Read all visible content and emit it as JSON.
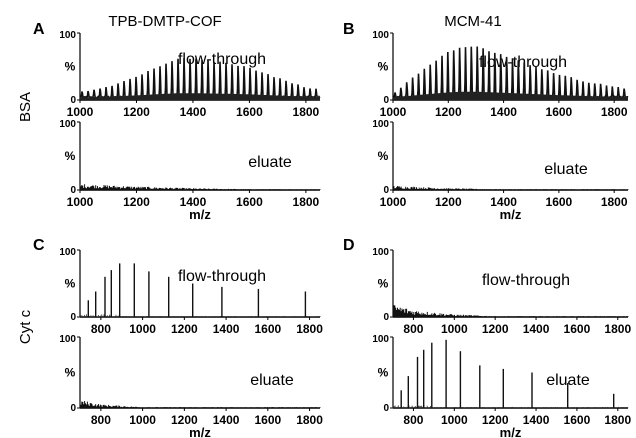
{
  "column_titles": [
    "TPB-DMTP-COF",
    "MCM-41"
  ],
  "row_labels": [
    "BSA",
    "Cyt c"
  ],
  "chart_data": [
    {
      "type": "line",
      "panel": "A",
      "protein": "BSA",
      "material": "TPB-DMTP-COF",
      "ylabel": "%",
      "yticks": [
        "0",
        "100"
      ],
      "subplots": [
        {
          "annotation": "flow-through",
          "xlim": [
            1000,
            1850
          ],
          "ylim": [
            0,
            100
          ],
          "pattern": "envelope",
          "x": [
            1000,
            1100,
            1200,
            1300,
            1350,
            1400,
            1500,
            1600,
            1700,
            1800,
            1850
          ],
          "y": [
            8,
            16,
            32,
            52,
            60,
            60,
            54,
            46,
            30,
            15,
            12
          ],
          "xticks": [
            "1000",
            "1200",
            "1400",
            "1600",
            "1800"
          ]
        },
        {
          "annotation": "eluate",
          "xlim": [
            1000,
            1850
          ],
          "ylim": [
            0,
            100
          ],
          "pattern": "noise",
          "x": [
            1000,
            1200,
            1400,
            1600,
            1850
          ],
          "y": [
            7,
            4,
            2,
            1,
            1
          ],
          "xticks": [
            "1000",
            "1200",
            "1400",
            "1600",
            "1800"
          ],
          "xlabel": "m/z"
        }
      ]
    },
    {
      "type": "line",
      "panel": "B",
      "protein": "BSA",
      "material": "MCM-41",
      "ylabel": "%",
      "yticks": [
        "0",
        "100"
      ],
      "subplots": [
        {
          "annotation": "flow-through",
          "xlim": [
            1000,
            1850
          ],
          "ylim": [
            0,
            100
          ],
          "pattern": "envelope",
          "x": [
            1000,
            1100,
            1200,
            1250,
            1300,
            1400,
            1500,
            1600,
            1700,
            1800,
            1850
          ],
          "y": [
            6,
            40,
            70,
            78,
            78,
            65,
            50,
            35,
            24,
            16,
            12
          ],
          "xticks": [
            "1000",
            "1200",
            "1400",
            "1600",
            "1800"
          ]
        },
        {
          "annotation": "eluate",
          "xlim": [
            1000,
            1850
          ],
          "ylim": [
            0,
            100
          ],
          "pattern": "noise",
          "x": [
            1000,
            1200,
            1400,
            1600,
            1850
          ],
          "y": [
            5,
            2,
            1,
            1,
            1
          ],
          "xticks": [
            "1000",
            "1200",
            "1400",
            "1600",
            "1800"
          ],
          "xlabel": "m/z"
        }
      ]
    },
    {
      "type": "line",
      "panel": "C",
      "protein": "Cyt c",
      "material": "TPB-DMTP-COF",
      "ylabel": "%",
      "yticks": [
        "0",
        "100"
      ],
      "subplots": [
        {
          "annotation": "flow-through",
          "xlim": [
            700,
            1850
          ],
          "ylim": [
            0,
            100
          ],
          "pattern": "peaks",
          "x": [
            740,
            775,
            820,
            850,
            890,
            960,
            1030,
            1125,
            1240,
            1380,
            1555,
            1780
          ],
          "y": [
            25,
            38,
            60,
            70,
            80,
            80,
            68,
            60,
            50,
            45,
            42,
            38
          ],
          "xticks": [
            "800",
            "1000",
            "1200",
            "1400",
            "1600",
            "1800"
          ]
        },
        {
          "annotation": "eluate",
          "xlim": [
            700,
            1850
          ],
          "ylim": [
            0,
            100
          ],
          "pattern": "noise",
          "x": [
            700,
            800,
            1000,
            1200,
            1850
          ],
          "y": [
            9,
            4,
            1,
            1,
            1
          ],
          "xticks": [
            "800",
            "1000",
            "1200",
            "1400",
            "1600",
            "1800"
          ],
          "xlabel": "m/z"
        }
      ]
    },
    {
      "type": "line",
      "panel": "D",
      "protein": "Cyt c",
      "material": "MCM-41",
      "ylabel": "%",
      "yticks": [
        "0",
        "100"
      ],
      "subplots": [
        {
          "annotation": "flow-through",
          "xlim": [
            700,
            1850
          ],
          "ylim": [
            0,
            100
          ],
          "pattern": "noise",
          "x": [
            700,
            800,
            1000,
            1200,
            1850
          ],
          "y": [
            15,
            8,
            3,
            1,
            1
          ],
          "xticks": [
            "800",
            "1000",
            "1200",
            "1400",
            "1600",
            "1800"
          ]
        },
        {
          "annotation": "eluate",
          "xlim": [
            700,
            1850
          ],
          "ylim": [
            0,
            100
          ],
          "pattern": "peaks",
          "x": [
            740,
            775,
            820,
            850,
            890,
            960,
            1030,
            1125,
            1240,
            1380,
            1555,
            1780
          ],
          "y": [
            25,
            45,
            72,
            82,
            92,
            96,
            80,
            60,
            55,
            50,
            35,
            20
          ],
          "xticks": [
            "800",
            "1000",
            "1200",
            "1400",
            "1600",
            "1800"
          ],
          "xlabel": "m/z"
        }
      ]
    }
  ]
}
